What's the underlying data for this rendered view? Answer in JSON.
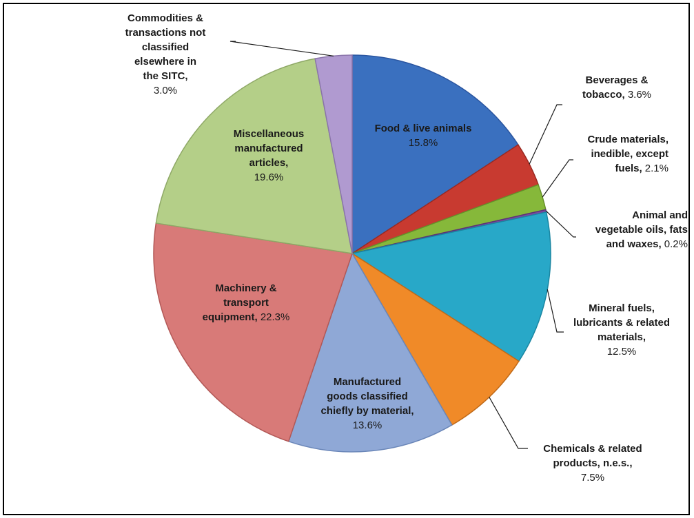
{
  "chart_data": {
    "type": "pie",
    "title": "",
    "start_angle_deg": 0,
    "direction": "clockwise",
    "slices": [
      {
        "label_lines": [
          "Food  & live animals"
        ],
        "value_text": "15.8%",
        "value": 15.8,
        "color": "#3a70bf",
        "edge": "#2a55a0"
      },
      {
        "label_lines": [
          "Beverages &",
          "tobacco,"
        ],
        "value_text": "3.6%",
        "value": 3.6,
        "color": "#c83a30",
        "edge": "#9a2a22"
      },
      {
        "label_lines": [
          "Crude materials,",
          "inedible, except",
          "fuels,"
        ],
        "value_text": "2.1%",
        "value": 2.1,
        "color": "#86b83a",
        "edge": "#66902a"
      },
      {
        "label_lines": [
          "Animal and",
          "vegetable oils, fats",
          "and waxes,"
        ],
        "value_text": "0.2%",
        "value": 0.2,
        "color": "#7a4aa0",
        "edge": "#5a3478"
      },
      {
        "label_lines": [
          "Mineral fuels,",
          "lubricants & related",
          "materials,"
        ],
        "value_text": "12.5%",
        "value": 12.5,
        "color": "#28a8c8",
        "edge": "#1a86a2"
      },
      {
        "label_lines": [
          "Chemicals & related",
          "products, n.e.s.,"
        ],
        "value_text": "7.5%",
        "value": 7.5,
        "color": "#f08a28",
        "edge": "#c06a18"
      },
      {
        "label_lines": [
          "Manufactured",
          "goods classified",
          "chiefly by material,"
        ],
        "value_text": "13.6%",
        "value": 13.6,
        "color": "#8fa8d6",
        "edge": "#6a86b8"
      },
      {
        "label_lines": [
          "Machinery &",
          "transport",
          "equipment,"
        ],
        "value_text": "22.3%",
        "value": 22.3,
        "color": "#d87a78",
        "edge": "#b25856"
      },
      {
        "label_lines": [
          "Miscellaneous",
          "manufactured",
          "articles,"
        ],
        "value_text": "19.6%",
        "value": 19.6,
        "color": "#b4cf88",
        "edge": "#8ea866"
      },
      {
        "label_lines": [
          "Commodities &",
          "transactions  not",
          "classified",
          "elsewhere in",
          "the SITC,"
        ],
        "value_text": "3.0%",
        "value": 3.0,
        "color": "#b09ad0",
        "edge": "#8a74aa"
      }
    ]
  }
}
